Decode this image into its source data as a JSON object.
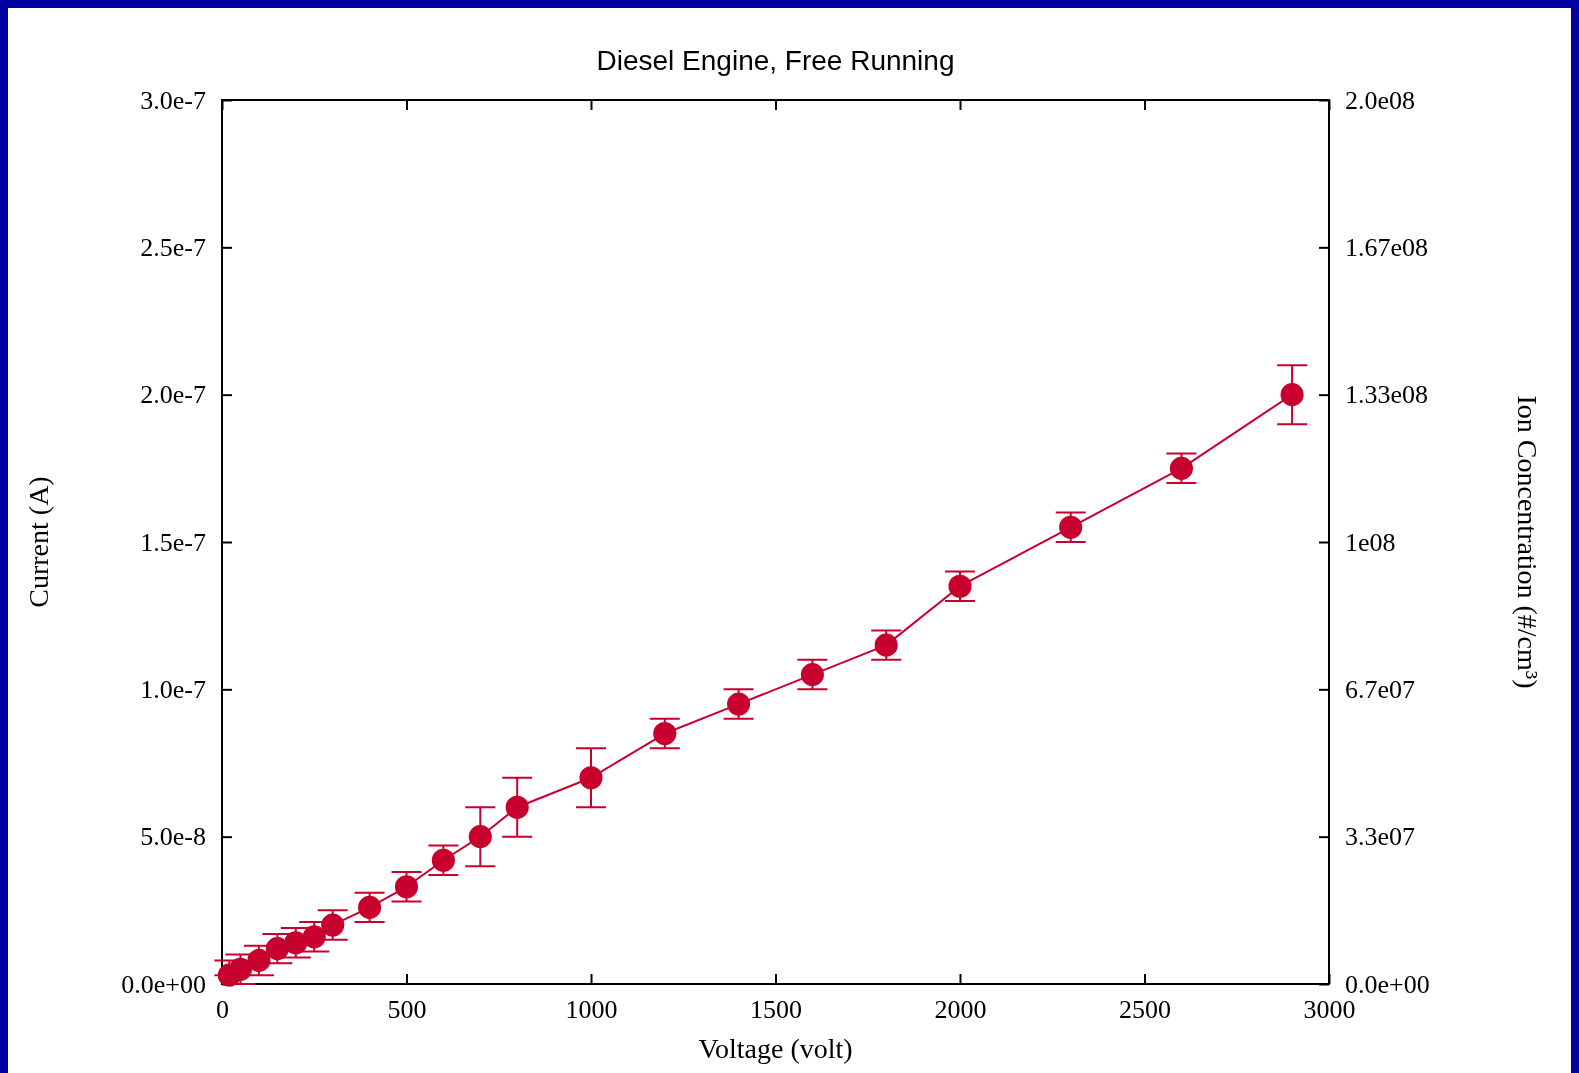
{
  "chart_data": {
    "type": "line",
    "title": "Diesel Engine, Free Running",
    "xlabel": "Voltage (volt)",
    "ylabel": "Current (A)",
    "y2label": "Ion Concentration (#/cm³)",
    "x": [
      20,
      50,
      100,
      150,
      200,
      250,
      300,
      400,
      500,
      600,
      700,
      800,
      1000,
      1200,
      1400,
      1600,
      1800,
      2000,
      2300,
      2600,
      2900
    ],
    "series": [
      {
        "color": "#c8002d",
        "values": [
          3e-09,
          5e-09,
          8e-09,
          1.2e-08,
          1.4e-08,
          1.6e-08,
          2e-08,
          2.6e-08,
          3.3e-08,
          4.2e-08,
          5e-08,
          6e-08,
          7e-08,
          8.5e-08,
          9.5e-08,
          1.05e-07,
          1.15e-07,
          1.35e-07,
          1.55e-07,
          1.75e-07,
          2e-07
        ],
        "errors": [
          [
            3e-09,
            8e-09
          ],
          5e-09,
          5e-09,
          5e-09,
          5e-09,
          5e-09,
          5e-09,
          5e-09,
          5e-09,
          5e-09,
          1e-08,
          1e-08,
          1e-08,
          5e-09,
          5e-09,
          5e-09,
          5e-09,
          5e-09,
          5e-09,
          5e-09,
          1e-08
        ]
      }
    ],
    "marker": "circle",
    "xlim": [
      0,
      3000
    ],
    "xticks": [
      0,
      500,
      1000,
      1500,
      2000,
      2500,
      3000
    ],
    "ylim": [
      0,
      3e-07
    ],
    "yticks": [
      {
        "value": 0,
        "label": "0.0e+00"
      },
      {
        "value": 5e-08,
        "label": "5.0e-8"
      },
      {
        "value": 1e-07,
        "label": "1.0e-7"
      },
      {
        "value": 1.5e-07,
        "label": "1.5e-7"
      },
      {
        "value": 2e-07,
        "label": "2.0e-7"
      },
      {
        "value": 2.5e-07,
        "label": "2.5e-7"
      },
      {
        "value": 3e-07,
        "label": "3.0e-7"
      }
    ],
    "y2lim": [
      0,
      200000000.0
    ],
    "y2ticks": [
      {
        "value": 0,
        "label": "0.0e+00"
      },
      {
        "value": 33333333,
        "label": "3.3e07"
      },
      {
        "value": 66666667,
        "label": "6.7e07"
      },
      {
        "value": 100000000,
        "label": "1e08"
      },
      {
        "value": 133333333,
        "label": "1.33e08"
      },
      {
        "value": 166666667,
        "label": "1.67e08"
      },
      {
        "value": 200000000,
        "label": "2.0e08"
      }
    ]
  }
}
